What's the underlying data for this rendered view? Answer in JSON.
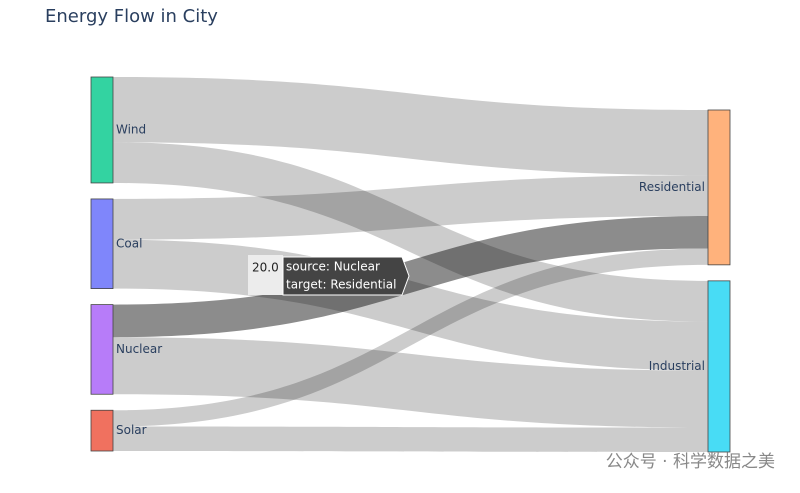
{
  "chart_data": {
    "type": "sankey",
    "title": "Energy Flow in City",
    "nodes": {
      "names": [
        "Wind",
        "Coal",
        "Nuclear",
        "Solar",
        "Residential",
        "Industrial"
      ],
      "colors": [
        "#33d3a1",
        "#7f86fb",
        "#b77cf9",
        "#f0715f",
        "#ffb27c",
        "#48dcf5"
      ]
    },
    "links": {
      "source": [
        0,
        0,
        1,
        1,
        2,
        2,
        3,
        3
      ],
      "target": [
        4,
        5,
        4,
        5,
        4,
        5,
        4,
        5
      ],
      "values": [
        40,
        25,
        25,
        30,
        20,
        35,
        10,
        15
      ]
    },
    "tooltip": {
      "value": "20.0",
      "source": "source: Nuclear",
      "target": "target: Residential"
    },
    "watermark": "公众号 · 科学数据之美"
  }
}
